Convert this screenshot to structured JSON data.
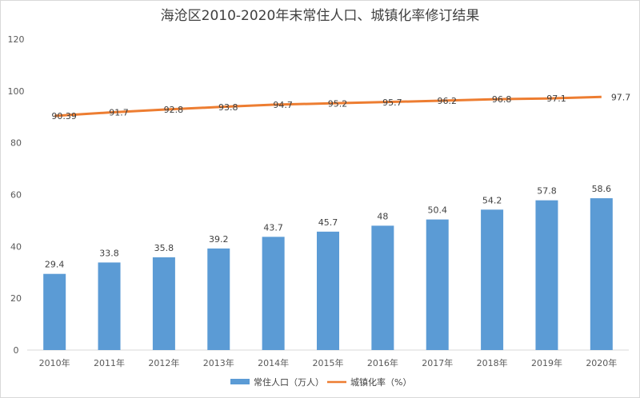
{
  "chart_data": {
    "type": "bar+line",
    "title": "海沧区2010-2020年末常住人口、城镇化率修订结果",
    "categories": [
      "2010年",
      "2011年",
      "2012年",
      "2013年",
      "2014年",
      "2015年",
      "2016年",
      "2017年",
      "2018年",
      "2019年",
      "2020年"
    ],
    "series": [
      {
        "name": "常住人口（万人）",
        "type": "bar",
        "color": "#5b9bd5",
        "values": [
          29.4,
          33.8,
          35.8,
          39.2,
          43.7,
          45.7,
          48,
          50.4,
          54.2,
          57.8,
          58.6
        ],
        "labels": [
          "29.4",
          "33.8",
          "35.8",
          "39.2",
          "43.7",
          "45.7",
          "48",
          "50.4",
          "54.2",
          "57.8",
          "58.6"
        ]
      },
      {
        "name": "城镇化率（%）",
        "type": "line",
        "color": "#ed7d31",
        "values": [
          90.39,
          91.7,
          92.8,
          93.8,
          94.7,
          95.2,
          95.7,
          96.2,
          96.8,
          97.1,
          97.7
        ],
        "labels": [
          "90.39",
          "91.7",
          "92.8",
          "93.8",
          "94.7",
          "95.2",
          "95.7",
          "96.2",
          "96.8",
          "97.1",
          "97.7"
        ]
      }
    ],
    "yticks": [
      "0",
      "20",
      "40",
      "60",
      "80",
      "100",
      "120"
    ],
    "ylim": [
      0,
      120
    ],
    "grid": false,
    "legend": "bottom"
  }
}
